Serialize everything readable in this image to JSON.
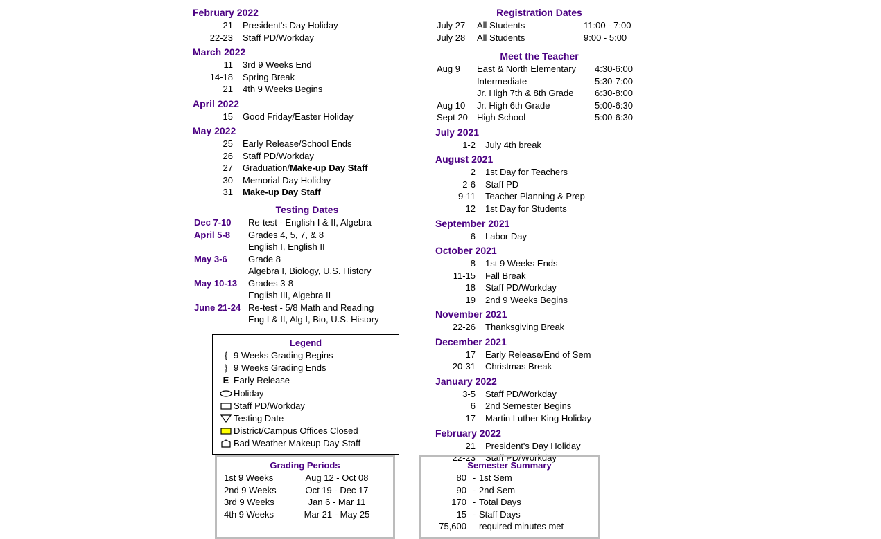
{
  "colors": {
    "heading": "#4b0082",
    "text": "#000000",
    "box_border": "#bcbcbc",
    "yellow": "#ffff00"
  },
  "left": {
    "months": [
      {
        "title": "February 2022",
        "events": [
          {
            "date": "21",
            "desc": "President's Day Holiday"
          },
          {
            "date": "22-23",
            "desc": "Staff PD/Workday"
          }
        ]
      },
      {
        "title": "March 2022",
        "events": [
          {
            "date": "11",
            "desc": "3rd 9 Weeks End"
          },
          {
            "date": "14-18",
            "desc": "Spring Break"
          },
          {
            "date": "21",
            "desc": "4th 9 Weeks Begins"
          }
        ]
      },
      {
        "title": "April 2022",
        "events": [
          {
            "date": "15",
            "desc": "Good Friday/Easter Holiday"
          }
        ]
      },
      {
        "title": "May 2022",
        "events": [
          {
            "date": "25",
            "desc": "Early Release/School Ends"
          },
          {
            "date": "26",
            "desc": "Staff PD/Workday"
          },
          {
            "date": "27",
            "desc": "Graduation/",
            "bold_suffix": "Make-up Day Staff"
          },
          {
            "date": "30",
            "desc": "Memorial Day Holiday"
          },
          {
            "date": "31",
            "desc": "",
            "bold_suffix": "Make-up Day Staff"
          }
        ]
      }
    ],
    "testing": {
      "title": "Testing Dates",
      "rows": [
        {
          "date": "Dec 7-10",
          "desc": "Re-test - English I & II, Algebra"
        },
        {
          "date": "April 5-8",
          "desc": "Grades 4, 5, 7, & 8",
          "sub": "English I, English II"
        },
        {
          "date": "May 3-6",
          "desc": "Grade 8",
          "sub": "Algebra I, Biology, U.S. History"
        },
        {
          "date": "May 10-13",
          "desc": "Grades 3-8",
          "sub": "English III, Algebra II"
        },
        {
          "date": "June 21-24",
          "desc": "Re-test - 5/8 Math and Reading",
          "sub": "Eng I & II, Alg I, Bio, U.S. History"
        }
      ]
    },
    "legend": {
      "title": "Legend",
      "items": [
        {
          "sym": "brace-open",
          "label": "9 Weeks Grading Begins"
        },
        {
          "sym": "brace-close",
          "label": "9 Weeks Grading Ends"
        },
        {
          "sym": "E",
          "label": "Early Release"
        },
        {
          "sym": "oval",
          "label": "Holiday"
        },
        {
          "sym": "rect",
          "label": "Staff PD/Workday"
        },
        {
          "sym": "tri-down",
          "label": "Testing Date"
        },
        {
          "sym": "rect-yellow",
          "label": "District/Campus Offices Closed"
        },
        {
          "sym": "pentagon",
          "label": "Bad Weather Makeup Day-Staff"
        }
      ]
    }
  },
  "right": {
    "registration": {
      "title": "Registration Dates",
      "rows": [
        {
          "date": "July 27",
          "desc": "All Students",
          "time": "11:00 - 7:00"
        },
        {
          "date": "July 28",
          "desc": "All Students",
          "time": "9:00 - 5:00"
        }
      ]
    },
    "meet_teacher": {
      "title": "Meet the Teacher",
      "rows": [
        {
          "date": "Aug  9",
          "desc": "East & North Elementary",
          "time": "4:30-6:00"
        },
        {
          "date": "",
          "desc": "Intermediate",
          "time": "5:30-7:00"
        },
        {
          "date": "",
          "desc": "Jr. High 7th & 8th Grade",
          "time": "6:30-8:00"
        },
        {
          "date": "Aug  10",
          "desc": "Jr. High 6th Grade",
          "time": "5:00-6:30"
        },
        {
          "date": "Sept 20",
          "desc": "High School",
          "time": "5:00-6:30"
        }
      ]
    },
    "months": [
      {
        "title": "July 2021",
        "events": [
          {
            "date": "1-2",
            "desc": "July 4th break"
          }
        ]
      },
      {
        "title": "August 2021",
        "events": [
          {
            "date": "2",
            "desc": "1st Day for Teachers"
          },
          {
            "date": "2-6",
            "desc": "Staff PD"
          },
          {
            "date": "9-11",
            "desc": "Teacher Planning & Prep"
          },
          {
            "date": "12",
            "desc": "1st Day for Students"
          }
        ]
      },
      {
        "title": "September 2021",
        "events": [
          {
            "date": "6",
            "desc": "Labor Day"
          }
        ]
      },
      {
        "title": "October 2021",
        "events": [
          {
            "date": "8",
            "desc": "1st 9 Weeks Ends"
          },
          {
            "date": "11-15",
            "desc": "Fall Break"
          },
          {
            "date": "18",
            "desc": "Staff PD/Workday"
          },
          {
            "date": "19",
            "desc": "2nd 9 Weeks Begins"
          }
        ]
      },
      {
        "title": "November 2021",
        "events": [
          {
            "date": "22-26",
            "desc": "Thanksgiving Break"
          }
        ]
      },
      {
        "title": "December 2021",
        "events": [
          {
            "date": "17",
            "desc": "Early Release/End of Sem"
          },
          {
            "date": "20-31",
            "desc": "Christmas Break"
          }
        ]
      },
      {
        "title": "January 2022",
        "events": [
          {
            "date": "3-5",
            "desc": "Staff PD/Workday"
          },
          {
            "date": "6",
            "desc": "2nd Semester Begins"
          },
          {
            "date": "17",
            "desc": "Martin Luther King Holiday"
          }
        ]
      },
      {
        "title": "February 2022",
        "events": [
          {
            "date": "21",
            "desc": "President's Day Holiday"
          },
          {
            "date": "22-23",
            "desc": "Staff PD/Workday"
          }
        ]
      }
    ]
  },
  "grading_periods": {
    "title": "Grading Periods",
    "rows": [
      {
        "label": "1st 9 Weeks",
        "range": "Aug 12 - Oct 08"
      },
      {
        "label": "2nd 9 Weeks",
        "range": "Oct 19 - Dec 17"
      },
      {
        "label": "3rd 9 Weeks",
        "range": "Jan 6 - Mar 11"
      },
      {
        "label": "4th 9 Weeks",
        "range": "Mar 21 - May 25"
      }
    ]
  },
  "semester_summary": {
    "title": "Semester Summary",
    "rows": [
      {
        "num": "80",
        "label": "1st Sem"
      },
      {
        "num": "90",
        "label": "2nd Sem"
      },
      {
        "num": "170",
        "label": "Total Days"
      },
      {
        "num": "15",
        "label": "Staff Days"
      },
      {
        "num": "75,600",
        "label": "required minutes met",
        "nodash": true
      }
    ]
  }
}
